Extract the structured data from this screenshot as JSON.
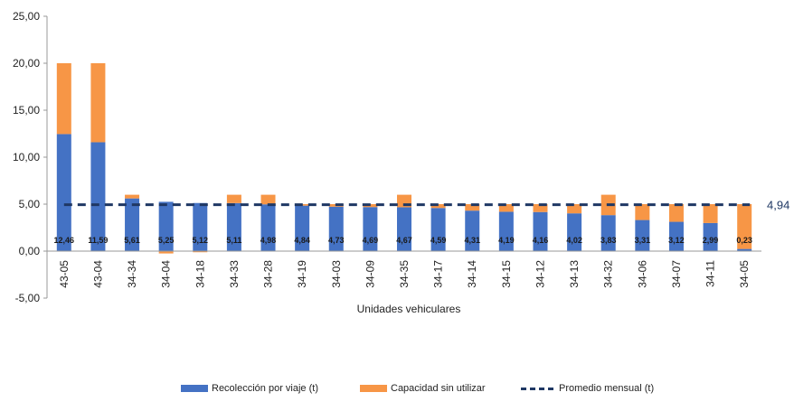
{
  "chart_data": {
    "type": "bar",
    "stacked": true,
    "categories": [
      "43-05",
      "43-04",
      "34-34",
      "34-04",
      "34-18",
      "34-33",
      "34-28",
      "34-19",
      "34-03",
      "34-09",
      "34-35",
      "34-17",
      "34-14",
      "34-15",
      "34-12",
      "34-13",
      "34-32",
      "34-06",
      "34-07",
      "34-11",
      "34-05"
    ],
    "series": [
      {
        "name": "Recolección por viaje (t)",
        "color": "#4472C4",
        "values": [
          12.46,
          11.59,
          5.61,
          5.25,
          5.12,
          5.11,
          4.98,
          4.84,
          4.73,
          4.69,
          4.67,
          4.59,
          4.31,
          4.19,
          4.16,
          4.02,
          3.83,
          3.31,
          3.12,
          2.99,
          0.23
        ],
        "labels": [
          "12,46",
          "11,59",
          "5,61",
          "5,25",
          "5,12",
          "5,11",
          "4,98",
          "4,84",
          "4,73",
          "4,69",
          "4,67",
          "4,59",
          "4,31",
          "4,19",
          "4,16",
          "4,02",
          "3,83",
          "3,31",
          "3,12",
          "2,99",
          "0,23"
        ]
      },
      {
        "name": "Capacidad sin utilizar",
        "color": "#F79646",
        "values": [
          7.54,
          8.41,
          0.39,
          -0.25,
          -0.12,
          0.89,
          1.02,
          0.16,
          0.27,
          0.31,
          1.33,
          0.41,
          0.69,
          0.81,
          0.84,
          0.98,
          2.17,
          1.69,
          1.88,
          2.01,
          4.77
        ]
      }
    ],
    "average": {
      "name": "Promedio mensual (t)",
      "value": 4.94,
      "label": "4,94",
      "color": "#1F3864"
    },
    "xlabel": "Unidades vehiculares",
    "ylabel": "",
    "ylim": [
      -5,
      25
    ],
    "yticks": [
      "25,00",
      "20,00",
      "15,00",
      "10,00",
      "5,00",
      "0,00",
      "-5,00"
    ],
    "grid": false,
    "legend_position": "bottom"
  }
}
